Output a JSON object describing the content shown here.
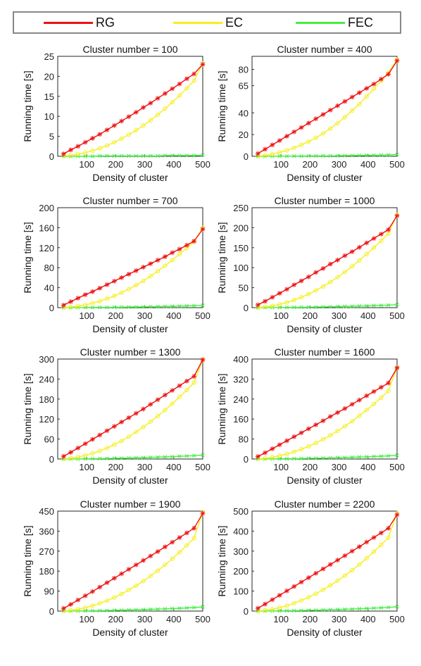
{
  "legend": [
    {
      "label": "RG",
      "color": "#ee1111"
    },
    {
      "label": "EC",
      "color": "#f5ef1e"
    },
    {
      "label": "FEC",
      "color": "#44ee44"
    }
  ],
  "chart_data": [
    {
      "type": "line",
      "title": "Cluster number = 100",
      "xlabel": "Density of cluster",
      "ylabel": "Running time [s]",
      "xlim": [
        0,
        500
      ],
      "ylim": [
        0,
        25
      ],
      "xticks": [
        100,
        200,
        300,
        400,
        500
      ],
      "yticks": [
        0,
        5,
        10,
        15,
        20,
        25
      ],
      "x": [
        20,
        45,
        70,
        95,
        120,
        145,
        170,
        195,
        220,
        245,
        270,
        295,
        320,
        345,
        370,
        395,
        420,
        445,
        470,
        500
      ],
      "series": [
        {
          "name": "RG",
          "color": "#ee1111",
          "marker": "star",
          "values": [
            0.6,
            1.6,
            2.5,
            3.5,
            4.5,
            5.5,
            6.6,
            7.7,
            8.8,
            9.9,
            11.0,
            12.2,
            13.3,
            14.5,
            15.7,
            16.9,
            18.1,
            19.4,
            20.6,
            23.0
          ]
        },
        {
          "name": "EC",
          "color": "#f5ef1e",
          "marker": "circle",
          "values": [
            0.1,
            0.2,
            0.5,
            0.9,
            1.4,
            2.0,
            2.7,
            3.5,
            4.4,
            5.4,
            6.5,
            7.7,
            9.0,
            10.4,
            11.9,
            13.5,
            15.2,
            17.0,
            18.9,
            23.2
          ]
        },
        {
          "name": "FEC",
          "color": "#44ee44",
          "marker": "x",
          "values": [
            0.0,
            0.0,
            0.0,
            0.0,
            0.0,
            0.1,
            0.1,
            0.1,
            0.1,
            0.1,
            0.1,
            0.1,
            0.1,
            0.1,
            0.2,
            0.2,
            0.2,
            0.2,
            0.2,
            0.3
          ]
        }
      ]
    },
    {
      "type": "line",
      "title": "Cluster number = 400",
      "xlabel": "Density of cluster",
      "ylabel": "Running time [s]",
      "xlim": [
        0,
        500
      ],
      "ylim": [
        0,
        92
      ],
      "xticks": [
        100,
        200,
        300,
        400,
        500
      ],
      "yticks": [
        0,
        20,
        40,
        65,
        80
      ],
      "x": [
        20,
        45,
        70,
        95,
        120,
        145,
        170,
        195,
        220,
        245,
        270,
        295,
        320,
        345,
        370,
        395,
        420,
        445,
        470,
        500
      ],
      "series": [
        {
          "name": "RG",
          "color": "#ee1111",
          "marker": "star",
          "values": [
            2.5,
            6.5,
            10.5,
            14.5,
            18.5,
            22.5,
            26.5,
            30.5,
            34.5,
            38.5,
            42.5,
            46.5,
            50.5,
            54.5,
            58.5,
            62.5,
            66.5,
            71.0,
            75.5,
            88.0
          ]
        },
        {
          "name": "EC",
          "color": "#f5ef1e",
          "marker": "circle",
          "values": [
            0.2,
            0.8,
            2.0,
            3.5,
            5.5,
            7.8,
            10.5,
            13.5,
            17.0,
            21.0,
            25.5,
            30.5,
            36.0,
            42.0,
            48.0,
            55.0,
            62.0,
            69.5,
            77.0,
            89.0
          ]
        },
        {
          "name": "FEC",
          "color": "#44ee44",
          "marker": "x",
          "values": [
            0.0,
            0.0,
            0.1,
            0.1,
            0.1,
            0.2,
            0.2,
            0.3,
            0.3,
            0.4,
            0.4,
            0.5,
            0.6,
            0.7,
            0.8,
            0.9,
            1.0,
            1.1,
            1.3,
            1.6
          ]
        }
      ]
    },
    {
      "type": "line",
      "title": "Cluster number = 700",
      "xlabel": "Density of cluster",
      "ylabel": "Running time [s]",
      "xlim": [
        0,
        500
      ],
      "ylim": [
        0,
        200
      ],
      "xticks": [
        100,
        200,
        300,
        400,
        500
      ],
      "yticks": [
        0,
        40,
        80,
        120,
        160,
        200
      ],
      "x": [
        20,
        45,
        70,
        95,
        120,
        145,
        170,
        195,
        220,
        245,
        270,
        295,
        320,
        345,
        370,
        395,
        420,
        445,
        470,
        500
      ],
      "series": [
        {
          "name": "RG",
          "color": "#ee1111",
          "marker": "star",
          "values": [
            5,
            12,
            19,
            26,
            32,
            39,
            46,
            53,
            60,
            67,
            74,
            81,
            88,
            95,
            102,
            110,
            117,
            125,
            133,
            157
          ]
        },
        {
          "name": "EC",
          "color": "#f5ef1e",
          "marker": "circle",
          "values": [
            0.3,
            1.2,
            3,
            5.5,
            9,
            13,
            18,
            23.5,
            30,
            37,
            45,
            53.5,
            63,
            73,
            84,
            95,
            107,
            119,
            132,
            160
          ]
        },
        {
          "name": "FEC",
          "color": "#44ee44",
          "marker": "x",
          "values": [
            0.0,
            0.1,
            0.2,
            0.3,
            0.4,
            0.5,
            0.6,
            0.8,
            1.0,
            1.2,
            1.4,
            1.6,
            1.9,
            2.2,
            2.5,
            2.8,
            3.1,
            3.5,
            3.9,
            4.6
          ]
        }
      ]
    },
    {
      "type": "line",
      "title": "Cluster number = 1000",
      "xlabel": "Density of cluster",
      "ylabel": "Running time [s]",
      "xlim": [
        0,
        500
      ],
      "ylim": [
        0,
        250
      ],
      "xticks": [
        100,
        200,
        300,
        400,
        500
      ],
      "yticks": [
        0,
        50,
        100,
        150,
        200,
        250
      ],
      "x": [
        20,
        45,
        70,
        95,
        120,
        145,
        170,
        195,
        220,
        245,
        270,
        295,
        320,
        345,
        370,
        395,
        420,
        445,
        470,
        500
      ],
      "series": [
        {
          "name": "RG",
          "color": "#ee1111",
          "marker": "star",
          "values": [
            7,
            16,
            26,
            36,
            46,
            57,
            67,
            77,
            88,
            98,
            109,
            119,
            130,
            140,
            151,
            162,
            173,
            184,
            195,
            230
          ]
        },
        {
          "name": "EC",
          "color": "#f5ef1e",
          "marker": "circle",
          "values": [
            0.4,
            2,
            4.5,
            8,
            13,
            19,
            26,
            34,
            43,
            53,
            64,
            76,
            89,
            103,
            118,
            134,
            150,
            167,
            185,
            232
          ]
        },
        {
          "name": "FEC",
          "color": "#44ee44",
          "marker": "x",
          "values": [
            0.1,
            0.2,
            0.3,
            0.4,
            0.6,
            0.8,
            1.0,
            1.3,
            1.6,
            1.9,
            2.3,
            2.7,
            3.1,
            3.6,
            4.1,
            4.6,
            5.2,
            5.8,
            6.4,
            7.5
          ]
        }
      ]
    },
    {
      "type": "line",
      "title": "Cluster number = 1300",
      "xlabel": "Density of cluster",
      "ylabel": "Running time [s]",
      "xlim": [
        0,
        500
      ],
      "ylim": [
        0,
        300
      ],
      "xticks": [
        100,
        200,
        300,
        400,
        500
      ],
      "yticks": [
        0,
        60,
        120,
        180,
        240,
        300
      ],
      "x": [
        20,
        45,
        70,
        95,
        120,
        145,
        170,
        195,
        220,
        245,
        270,
        295,
        320,
        345,
        370,
        395,
        420,
        445,
        470,
        500
      ],
      "series": [
        {
          "name": "RG",
          "color": "#ee1111",
          "marker": "star",
          "values": [
            8,
            20,
            33,
            46,
            59,
            72,
            85,
            98,
            111,
            124,
            137,
            150,
            164,
            178,
            192,
            206,
            220,
            234,
            248,
            298
          ]
        },
        {
          "name": "EC",
          "color": "#f5ef1e",
          "marker": "circle",
          "values": [
            0.5,
            2.5,
            6,
            11,
            17,
            24.5,
            33,
            43,
            54,
            67,
            81,
            96,
            112,
            129,
            147,
            166,
            186,
            207,
            229,
            298
          ]
        },
        {
          "name": "FEC",
          "color": "#44ee44",
          "marker": "x",
          "values": [
            0.1,
            0.2,
            0.4,
            0.6,
            0.9,
            1.2,
            1.6,
            2.0,
            2.5,
            3.0,
            3.6,
            4.2,
            4.9,
            5.6,
            6.4,
            7.2,
            8.1,
            9.0,
            10.0,
            12.0
          ]
        }
      ]
    },
    {
      "type": "line",
      "title": "Cluster number = 1600",
      "xlabel": "Density of cluster",
      "ylabel": "Running time [s]",
      "xlim": [
        0,
        500
      ],
      "ylim": [
        0,
        400
      ],
      "xticks": [
        100,
        200,
        300,
        400,
        500
      ],
      "yticks": [
        0,
        80,
        160,
        240,
        320,
        400
      ],
      "x": [
        20,
        45,
        70,
        95,
        120,
        145,
        170,
        195,
        220,
        245,
        270,
        295,
        320,
        345,
        370,
        395,
        420,
        445,
        470,
        500
      ],
      "series": [
        {
          "name": "RG",
          "color": "#ee1111",
          "marker": "star",
          "values": [
            10,
            25,
            41,
            57,
            73,
            89,
            105,
            121,
            137,
            153,
            170,
            186,
            202,
            219,
            236,
            253,
            270,
            287,
            304,
            365
          ]
        },
        {
          "name": "EC",
          "color": "#f5ef1e",
          "marker": "circle",
          "values": [
            0.6,
            3,
            7,
            13,
            20,
            29,
            39,
            51,
            64,
            79,
            95,
            112,
            131,
            151,
            173,
            196,
            220,
            245,
            272,
            365
          ]
        },
        {
          "name": "FEC",
          "color": "#44ee44",
          "marker": "x",
          "values": [
            0.1,
            0.3,
            0.5,
            0.8,
            1.1,
            1.5,
            2.0,
            2.5,
            3.1,
            3.8,
            4.5,
            5.3,
            6.1,
            7.0,
            8.0,
            9.0,
            10.1,
            11.3,
            12.5,
            15.0
          ]
        }
      ]
    },
    {
      "type": "line",
      "title": "Cluster number = 1900",
      "xlabel": "Density of cluster",
      "ylabel": "Running time [s]",
      "xlim": [
        0,
        500
      ],
      "ylim": [
        0,
        450
      ],
      "xticks": [
        100,
        200,
        300,
        400,
        500
      ],
      "yticks": [
        0,
        90,
        180,
        270,
        360,
        450
      ],
      "x": [
        20,
        45,
        70,
        95,
        120,
        145,
        170,
        195,
        220,
        245,
        270,
        295,
        320,
        345,
        370,
        395,
        420,
        445,
        470,
        500
      ],
      "series": [
        {
          "name": "RG",
          "color": "#ee1111",
          "marker": "star",
          "values": [
            12,
            30,
            50,
            69,
            88,
            108,
            128,
            148,
            168,
            188,
            208,
            228,
            248,
            268,
            289,
            310,
            331,
            352,
            373,
            440
          ]
        },
        {
          "name": "EC",
          "color": "#f5ef1e",
          "marker": "circle",
          "values": [
            0.7,
            3.5,
            8,
            15,
            24,
            35,
            47,
            61,
            77,
            95,
            114,
            135,
            158,
            182,
            208,
            236,
            265,
            296,
            328,
            445
          ]
        },
        {
          "name": "FEC",
          "color": "#44ee44",
          "marker": "x",
          "values": [
            0.1,
            0.3,
            0.6,
            1.0,
            1.4,
            1.9,
            2.5,
            3.2,
            4.0,
            4.8,
            5.7,
            6.7,
            7.8,
            8.9,
            10.1,
            11.4,
            12.8,
            14.2,
            15.7,
            19.0
          ]
        }
      ]
    },
    {
      "type": "line",
      "title": "Cluster number = 2200",
      "xlabel": "Density of cluster",
      "ylabel": "Running time [s]",
      "xlim": [
        0,
        500
      ],
      "ylim": [
        0,
        500
      ],
      "xticks": [
        100,
        200,
        300,
        400,
        500
      ],
      "yticks": [
        0,
        100,
        200,
        300,
        400,
        500
      ],
      "x": [
        20,
        45,
        70,
        95,
        120,
        145,
        170,
        195,
        220,
        245,
        270,
        295,
        320,
        345,
        370,
        395,
        420,
        445,
        470,
        500
      ],
      "series": [
        {
          "name": "RG",
          "color": "#ee1111",
          "marker": "star",
          "values": [
            14,
            35,
            57,
            79,
            101,
            123,
            145,
            167,
            189,
            211,
            233,
            255,
            277,
            300,
            322,
            345,
            368,
            391,
            414,
            482
          ]
        },
        {
          "name": "EC",
          "color": "#f5ef1e",
          "marker": "circle",
          "values": [
            0.8,
            4,
            9,
            17,
            27,
            39,
            53,
            69,
            87,
            107,
            128,
            152,
            177,
            204,
            233,
            264,
            297,
            331,
            367,
            490
          ]
        },
        {
          "name": "FEC",
          "color": "#44ee44",
          "marker": "x",
          "values": [
            0.1,
            0.4,
            0.7,
            1.1,
            1.6,
            2.2,
            2.9,
            3.7,
            4.6,
            5.6,
            6.6,
            7.8,
            9.0,
            10.3,
            11.7,
            13.2,
            14.8,
            16.5,
            18.3,
            22.0
          ]
        }
      ]
    }
  ]
}
